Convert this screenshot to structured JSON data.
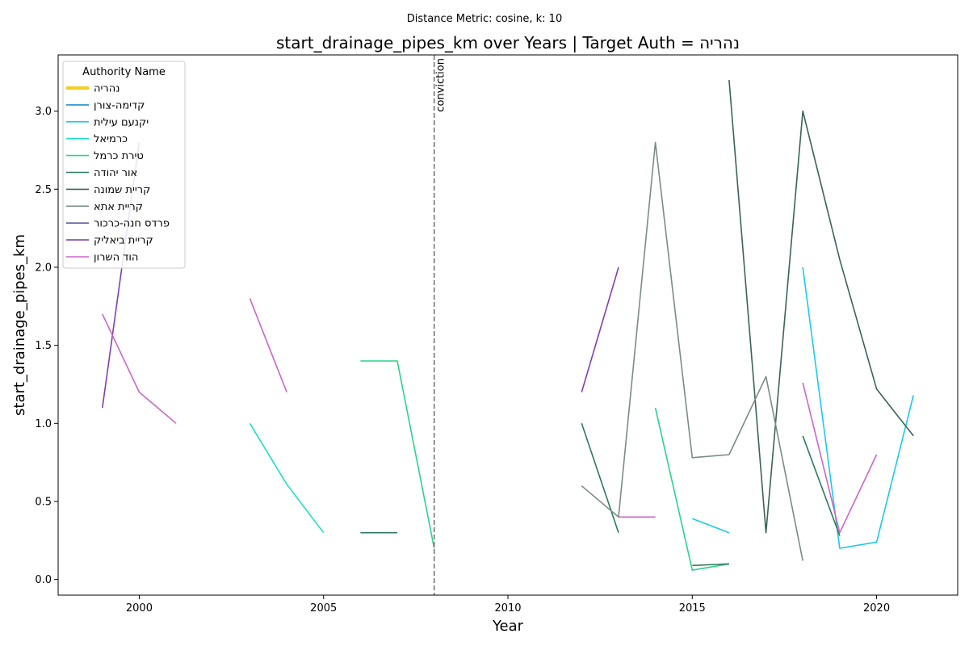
{
  "chart_data": {
    "type": "line",
    "suptitle": "Distance Metric: cosine, k: 10",
    "title": "start_drainage_pipes_km over Years | Target Auth = נהריה",
    "xlabel": "Year",
    "ylabel": "start_drainage_pipes_km",
    "xlim": [
      1997.8,
      2022.2
    ],
    "ylim": [
      -0.1,
      3.36
    ],
    "xticks": [
      2000,
      2005,
      2010,
      2015,
      2020
    ],
    "yticks": [
      0.0,
      0.5,
      1.0,
      1.5,
      2.0,
      2.5,
      3.0
    ],
    "grid": false,
    "legend_title": "Authority Name",
    "legend_position": "top-left",
    "vline": {
      "x": 2008,
      "label": "conviction",
      "color": "#777777"
    },
    "series": [
      {
        "name": "נהריה",
        "color": "#f2d022",
        "target": true,
        "segments": []
      },
      {
        "name": "קדימה-צורן",
        "color": "#1f8fc9",
        "segments": []
      },
      {
        "name": "יקנעם עילית",
        "color": "#1ec8f0",
        "segments": [
          [
            [
              2015,
              0.39
            ],
            [
              2016,
              0.3
            ]
          ],
          [
            [
              2018,
              2.0
            ],
            [
              2019,
              0.2
            ],
            [
              2020,
              0.24
            ],
            [
              2021,
              1.18
            ]
          ]
        ]
      },
      {
        "name": "כרמיאל",
        "color": "#1ee0c4",
        "segments": [
          [
            [
              2003,
              1.0
            ],
            [
              2004,
              0.61
            ],
            [
              2005,
              0.3
            ]
          ]
        ]
      },
      {
        "name": "טירת כרמל",
        "color": "#2ad48a",
        "segments": [
          [
            [
              2006,
              1.4
            ],
            [
              2007,
              1.4
            ],
            [
              2008,
              0.2
            ]
          ],
          [
            [
              2014,
              1.1
            ],
            [
              2015,
              0.06
            ],
            [
              2016,
              0.1
            ]
          ]
        ]
      },
      {
        "name": "אור יהודה",
        "color": "#2f7a5c",
        "segments": [
          [
            [
              2006,
              0.3
            ],
            [
              2007,
              0.3
            ]
          ],
          [
            [
              2012,
              1.0
            ],
            [
              2013,
              0.3
            ]
          ],
          [
            [
              2015,
              0.09
            ],
            [
              2016,
              0.1
            ]
          ],
          [
            [
              2018,
              0.92
            ],
            [
              2019,
              0.28
            ]
          ]
        ]
      },
      {
        "name": "קריית שמונה",
        "color": "#3a6457",
        "segments": [
          [
            [
              2016,
              3.2
            ],
            [
              2017,
              0.3
            ],
            [
              2018,
              3.0
            ],
            [
              2019,
              2.05
            ],
            [
              2020,
              1.22
            ],
            [
              2021,
              0.92
            ]
          ]
        ]
      },
      {
        "name": "קריית אתא",
        "color": "#7a8c85",
        "segments": [
          [
            [
              2012,
              0.6
            ],
            [
              2013,
              0.4
            ],
            [
              2014,
              2.8
            ],
            [
              2015,
              0.78
            ],
            [
              2016,
              0.8
            ],
            [
              2017,
              1.3
            ],
            [
              2018,
              0.12
            ]
          ]
        ]
      },
      {
        "name": "פרדס חנה-כרכור",
        "color": "#5a5aa0",
        "segments": []
      },
      {
        "name": "קריית ביאליק",
        "color": "#8040b0",
        "segments": [
          [
            [
              1999,
              1.1
            ],
            [
              2000,
              2.8
            ]
          ],
          [
            [
              2012,
              1.2
            ],
            [
              2013,
              2.0
            ]
          ]
        ]
      },
      {
        "name": "הוד השרון",
        "color": "#cc66cc",
        "segments": [
          [
            [
              1999,
              1.7
            ],
            [
              2000,
              1.2
            ],
            [
              2001,
              1.0
            ]
          ],
          [
            [
              2003,
              1.8
            ],
            [
              2004,
              1.2
            ]
          ],
          [
            [
              2013,
              0.4
            ],
            [
              2014,
              0.4
            ]
          ],
          [
            [
              2018,
              1.26
            ],
            [
              2019,
              0.3
            ],
            [
              2020,
              0.8
            ]
          ]
        ]
      }
    ]
  }
}
